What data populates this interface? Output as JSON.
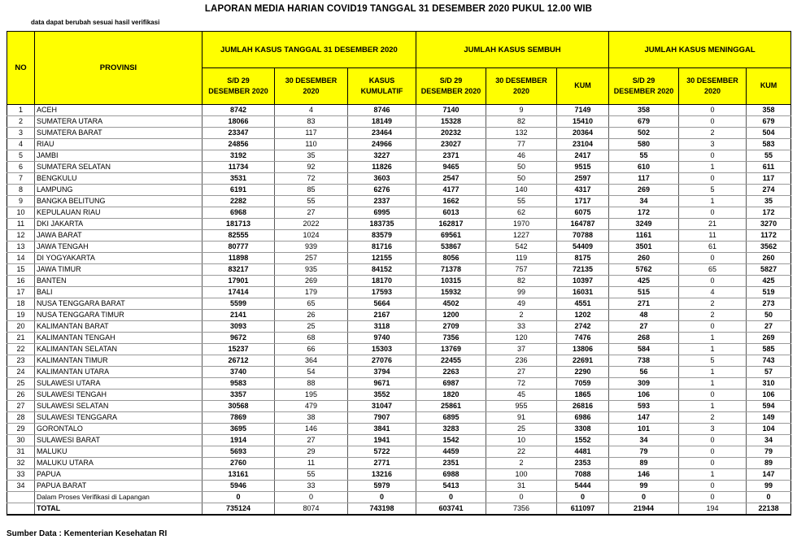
{
  "title": "LAPORAN MEDIA HARIAN COVID19 TANGGAL 31 DESEMBER 2020 PUKUL 12.00 WIB",
  "subtitle": "data dapat berubah sesuai hasil verifikasi",
  "footer": "Sumber Data : Kementerian Kesehatan RI",
  "colors": {
    "header_bg": "#FFFF00",
    "border_dark": "#000000",
    "border_light": "#9A9A9A"
  },
  "table": {
    "col_no": "NO",
    "col_provinsi": "PROVINSI",
    "groups": [
      {
        "label": "JUMLAH KASUS TANGGAL 31 DESEMBER 2020",
        "sub": [
          "S/D 29\nDESEMBER 2020",
          "30 DESEMBER\n2020",
          "KASUS\nKUMULATIF"
        ]
      },
      {
        "label": "JUMLAH KASUS SEMBUH",
        "sub": [
          "S/D 29\nDESEMBER 2020",
          "30 DESEMBER\n2020",
          "KUM"
        ]
      },
      {
        "label": "JUMLAH KASUS MENINGGAL",
        "sub": [
          "S/D 29\nDESEMBER 2020",
          "30 DESEMBER\n2020",
          "KUM"
        ]
      }
    ],
    "rows": [
      {
        "no": "1",
        "provinsi": "ACEH",
        "values": [
          8742,
          4,
          8746,
          7140,
          9,
          7149,
          358,
          0,
          358
        ]
      },
      {
        "no": "2",
        "provinsi": "SUMATERA UTARA",
        "values": [
          18066,
          83,
          18149,
          15328,
          82,
          15410,
          679,
          0,
          679
        ]
      },
      {
        "no": "3",
        "provinsi": "SUMATERA BARAT",
        "values": [
          23347,
          117,
          23464,
          20232,
          132,
          20364,
          502,
          2,
          504
        ]
      },
      {
        "no": "4",
        "provinsi": "RIAU",
        "values": [
          24856,
          110,
          24966,
          23027,
          77,
          23104,
          580,
          3,
          583
        ]
      },
      {
        "no": "5",
        "provinsi": "JAMBI",
        "values": [
          3192,
          35,
          3227,
          2371,
          46,
          2417,
          55,
          0,
          55
        ]
      },
      {
        "no": "6",
        "provinsi": "SUMATERA SELATAN",
        "values": [
          11734,
          92,
          11826,
          9465,
          50,
          9515,
          610,
          1,
          611
        ]
      },
      {
        "no": "7",
        "provinsi": "BENGKULU",
        "values": [
          3531,
          72,
          3603,
          2547,
          50,
          2597,
          117,
          0,
          117
        ]
      },
      {
        "no": "8",
        "provinsi": "LAMPUNG",
        "values": [
          6191,
          85,
          6276,
          4177,
          140,
          4317,
          269,
          5,
          274
        ]
      },
      {
        "no": "9",
        "provinsi": "BANGKA BELITUNG",
        "values": [
          2282,
          55,
          2337,
          1662,
          55,
          1717,
          34,
          1,
          35
        ]
      },
      {
        "no": "10",
        "provinsi": "KEPULAUAN RIAU",
        "values": [
          6968,
          27,
          6995,
          6013,
          62,
          6075,
          172,
          0,
          172
        ]
      },
      {
        "no": "11",
        "provinsi": "DKI JAKARTA",
        "values": [
          181713,
          2022,
          183735,
          162817,
          1970,
          164787,
          3249,
          21,
          3270
        ]
      },
      {
        "no": "12",
        "provinsi": "JAWA BARAT",
        "values": [
          82555,
          1024,
          83579,
          69561,
          1227,
          70788,
          1161,
          11,
          1172
        ]
      },
      {
        "no": "13",
        "provinsi": "JAWA TENGAH",
        "values": [
          80777,
          939,
          81716,
          53867,
          542,
          54409,
          3501,
          61,
          3562
        ]
      },
      {
        "no": "14",
        "provinsi": "DI YOGYAKARTA",
        "values": [
          11898,
          257,
          12155,
          8056,
          119,
          8175,
          260,
          0,
          260
        ]
      },
      {
        "no": "15",
        "provinsi": "JAWA TIMUR",
        "values": [
          83217,
          935,
          84152,
          71378,
          757,
          72135,
          5762,
          65,
          5827
        ]
      },
      {
        "no": "16",
        "provinsi": "BANTEN",
        "values": [
          17901,
          269,
          18170,
          10315,
          82,
          10397,
          425,
          0,
          425
        ]
      },
      {
        "no": "17",
        "provinsi": "BALI",
        "values": [
          17414,
          179,
          17593,
          15932,
          99,
          16031,
          515,
          4,
          519
        ]
      },
      {
        "no": "18",
        "provinsi": "NUSA TENGGARA BARAT",
        "values": [
          5599,
          65,
          5664,
          4502,
          49,
          4551,
          271,
          2,
          273
        ]
      },
      {
        "no": "19",
        "provinsi": "NUSA TENGGARA TIMUR",
        "values": [
          2141,
          26,
          2167,
          1200,
          2,
          1202,
          48,
          2,
          50
        ]
      },
      {
        "no": "20",
        "provinsi": "KALIMANTAN BARAT",
        "values": [
          3093,
          25,
          3118,
          2709,
          33,
          2742,
          27,
          0,
          27
        ]
      },
      {
        "no": "21",
        "provinsi": "KALIMANTAN TENGAH",
        "values": [
          9672,
          68,
          9740,
          7356,
          120,
          7476,
          268,
          1,
          269
        ]
      },
      {
        "no": "22",
        "provinsi": "KALIMANTAN SELATAN",
        "values": [
          15237,
          66,
          15303,
          13769,
          37,
          13806,
          584,
          1,
          585
        ]
      },
      {
        "no": "23",
        "provinsi": "KALIMANTAN TIMUR",
        "values": [
          26712,
          364,
          27076,
          22455,
          236,
          22691,
          738,
          5,
          743
        ]
      },
      {
        "no": "24",
        "provinsi": "KALIMANTAN UTARA",
        "values": [
          3740,
          54,
          3794,
          2263,
          27,
          2290,
          56,
          1,
          57
        ]
      },
      {
        "no": "25",
        "provinsi": "SULAWESI UTARA",
        "values": [
          9583,
          88,
          9671,
          6987,
          72,
          7059,
          309,
          1,
          310
        ]
      },
      {
        "no": "26",
        "provinsi": "SULAWESI TENGAH",
        "values": [
          3357,
          195,
          3552,
          1820,
          45,
          1865,
          106,
          0,
          106
        ]
      },
      {
        "no": "27",
        "provinsi": "SULAWESI SELATAN",
        "values": [
          30568,
          479,
          31047,
          25861,
          955,
          26816,
          593,
          1,
          594
        ]
      },
      {
        "no": "28",
        "provinsi": "SULAWESI TENGGARA",
        "values": [
          7869,
          38,
          7907,
          6895,
          91,
          6986,
          147,
          2,
          149
        ]
      },
      {
        "no": "29",
        "provinsi": "GORONTALO",
        "values": [
          3695,
          146,
          3841,
          3283,
          25,
          3308,
          101,
          3,
          104
        ]
      },
      {
        "no": "30",
        "provinsi": "SULAWESI BARAT",
        "values": [
          1914,
          27,
          1941,
          1542,
          10,
          1552,
          34,
          0,
          34
        ]
      },
      {
        "no": "31",
        "provinsi": "MALUKU",
        "values": [
          5693,
          29,
          5722,
          4459,
          22,
          4481,
          79,
          0,
          79
        ]
      },
      {
        "no": "32",
        "provinsi": "MALUKU UTARA",
        "values": [
          2760,
          11,
          2771,
          2351,
          2,
          2353,
          89,
          0,
          89
        ]
      },
      {
        "no": "33",
        "provinsi": "PAPUA",
        "values": [
          13161,
          55,
          13216,
          6988,
          100,
          7088,
          146,
          1,
          147
        ]
      },
      {
        "no": "34",
        "provinsi": "PAPUA BARAT",
        "values": [
          5946,
          33,
          5979,
          5413,
          31,
          5444,
          99,
          0,
          99
        ]
      }
    ],
    "verification_row": {
      "label": "Dalam Proses Verifikasi di Lapangan",
      "values": [
        0,
        0,
        0,
        0,
        0,
        0,
        0,
        0,
        0
      ]
    },
    "total_row": {
      "label": "TOTAL",
      "values": [
        735124,
        8074,
        743198,
        603741,
        7356,
        611097,
        21944,
        194,
        22138
      ]
    }
  }
}
